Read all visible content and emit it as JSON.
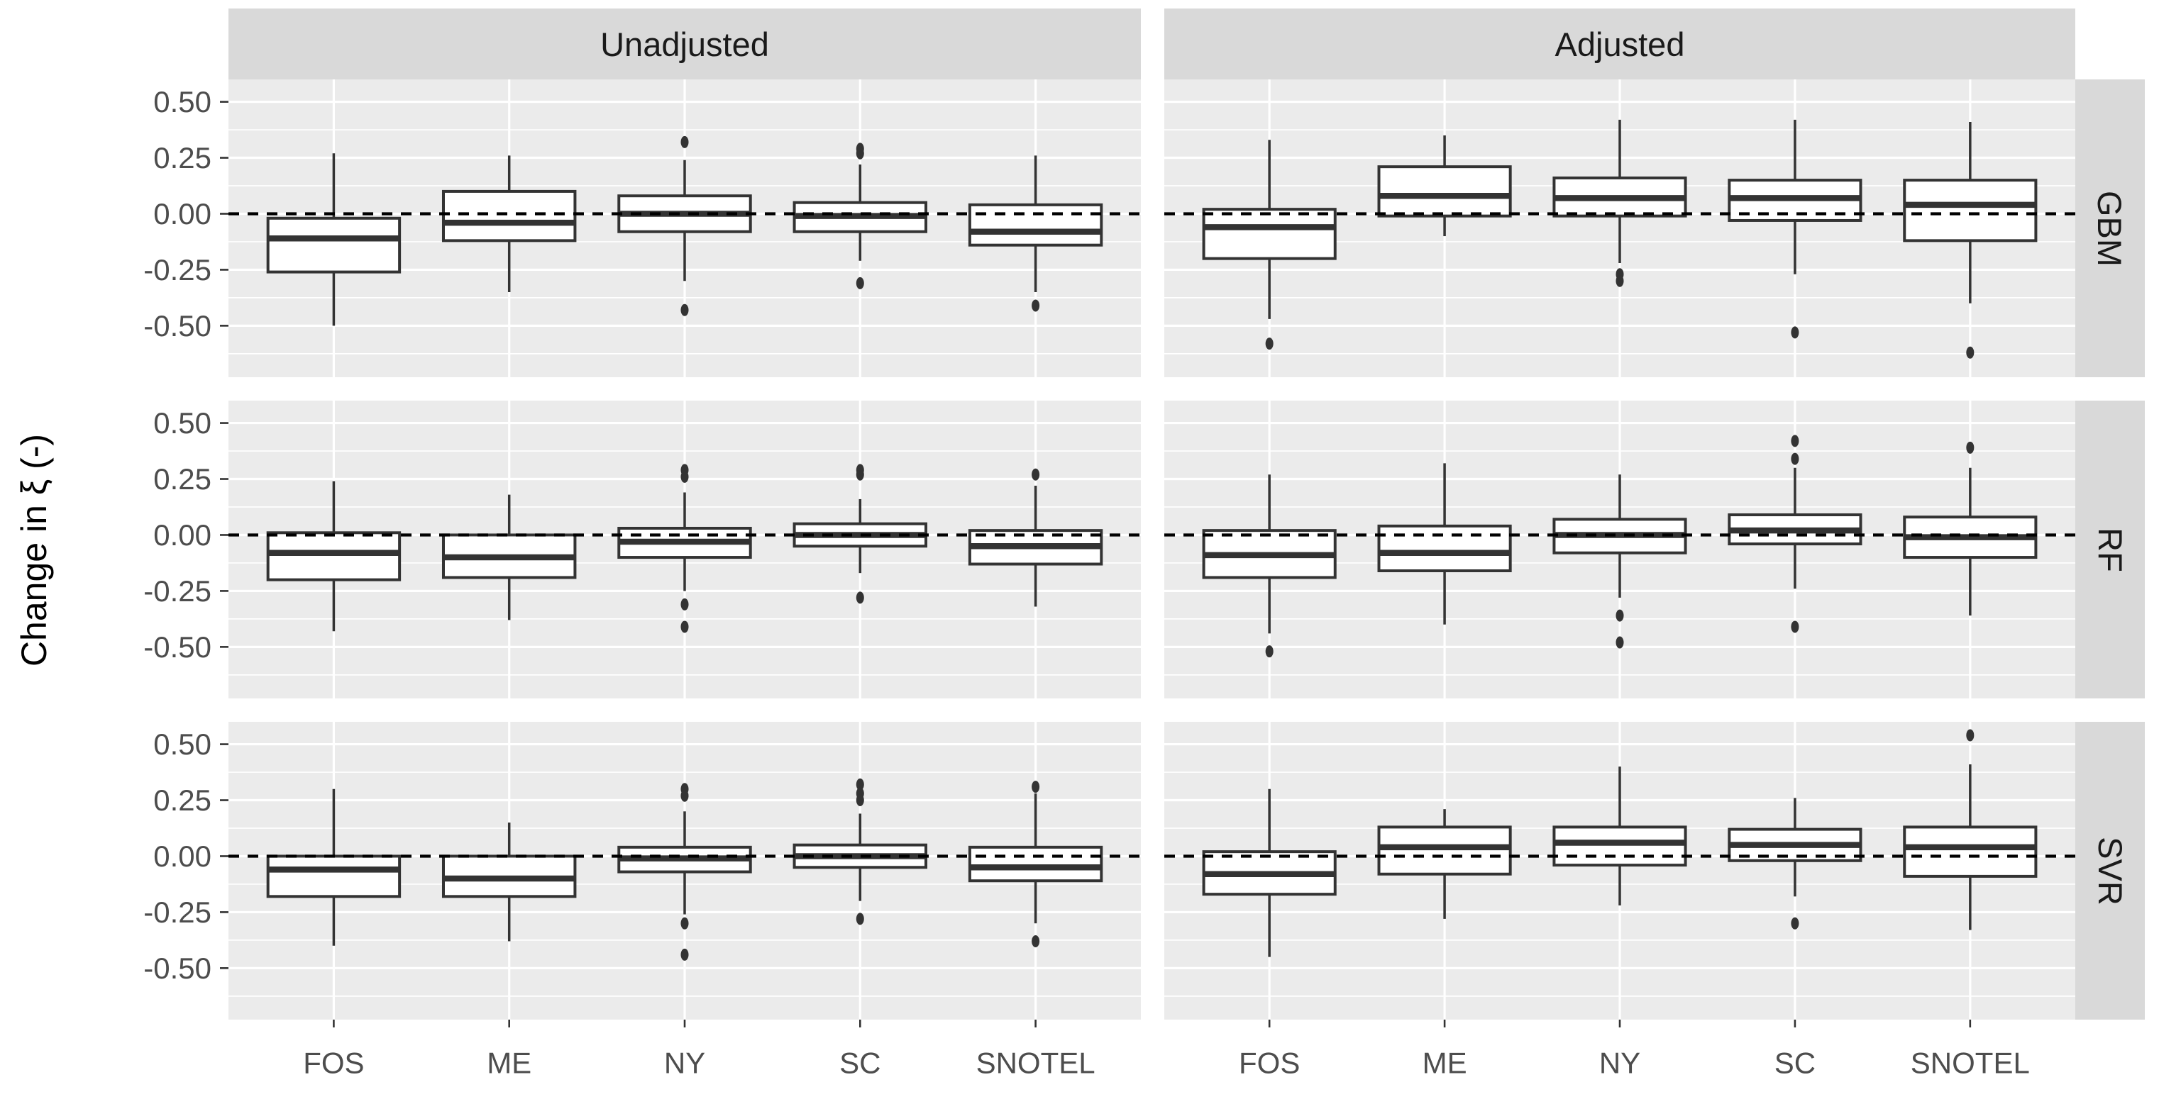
{
  "chart_data": {
    "type": "boxplot",
    "title": "",
    "ylabel": "Change in ξ (-)",
    "xlabel": "",
    "col_facets": [
      "Unadjusted",
      "Adjusted"
    ],
    "row_facets": [
      "GBM",
      "RF",
      "SVR"
    ],
    "x_categories": [
      "FOS",
      "ME",
      "NY",
      "SC",
      "SNOTEL"
    ],
    "y_ticks": [
      0.5,
      0.25,
      0.0,
      -0.25,
      -0.5
    ],
    "y_tick_labels": [
      "0.50",
      "0.25",
      "0.00",
      "-0.25",
      "-0.50"
    ],
    "ylim": [
      -0.73,
      0.6
    ],
    "reference_line_y": 0,
    "grid": true,
    "colors": {
      "panel_bg": "#EBEBEB",
      "strip_bg": "#D9D9D9",
      "gridline": "#FFFFFF",
      "box_stroke": "#333333",
      "box_fill": "#FFFFFF",
      "reference_line": "#000000",
      "axis_text": "#4D4D4D",
      "strip_text": "#1A1A1A"
    },
    "panels": [
      {
        "col": "Unadjusted",
        "row": "GBM",
        "boxes": [
          {
            "category": "FOS",
            "whisker_low": -0.5,
            "q1": -0.26,
            "median": -0.11,
            "q3": -0.02,
            "whisker_high": 0.27,
            "outliers": []
          },
          {
            "category": "ME",
            "whisker_low": -0.35,
            "q1": -0.12,
            "median": -0.04,
            "q3": 0.1,
            "whisker_high": 0.26,
            "outliers": []
          },
          {
            "category": "NY",
            "whisker_low": -0.3,
            "q1": -0.08,
            "median": 0.0,
            "q3": 0.08,
            "whisker_high": 0.24,
            "outliers": [
              0.32,
              -0.43
            ]
          },
          {
            "category": "SC",
            "whisker_low": -0.21,
            "q1": -0.08,
            "median": -0.01,
            "q3": 0.05,
            "whisker_high": 0.22,
            "outliers": [
              0.29,
              0.27,
              -0.31
            ]
          },
          {
            "category": "SNOTEL",
            "whisker_low": -0.35,
            "q1": -0.14,
            "median": -0.08,
            "q3": 0.04,
            "whisker_high": 0.26,
            "outliers": [
              -0.41
            ]
          }
        ]
      },
      {
        "col": "Adjusted",
        "row": "GBM",
        "boxes": [
          {
            "category": "FOS",
            "whisker_low": -0.47,
            "q1": -0.2,
            "median": -0.06,
            "q3": 0.02,
            "whisker_high": 0.33,
            "outliers": [
              -0.58
            ]
          },
          {
            "category": "ME",
            "whisker_low": -0.1,
            "q1": -0.01,
            "median": 0.08,
            "q3": 0.21,
            "whisker_high": 0.35,
            "outliers": []
          },
          {
            "category": "NY",
            "whisker_low": -0.22,
            "q1": -0.01,
            "median": 0.07,
            "q3": 0.16,
            "whisker_high": 0.42,
            "outliers": [
              -0.27,
              -0.3
            ]
          },
          {
            "category": "SC",
            "whisker_low": -0.27,
            "q1": -0.03,
            "median": 0.07,
            "q3": 0.15,
            "whisker_high": 0.42,
            "outliers": [
              -0.53
            ]
          },
          {
            "category": "SNOTEL",
            "whisker_low": -0.4,
            "q1": -0.12,
            "median": 0.04,
            "q3": 0.15,
            "whisker_high": 0.41,
            "outliers": [
              -0.62
            ]
          }
        ]
      },
      {
        "col": "Unadjusted",
        "row": "RF",
        "boxes": [
          {
            "category": "FOS",
            "whisker_low": -0.43,
            "q1": -0.2,
            "median": -0.08,
            "q3": 0.01,
            "whisker_high": 0.24,
            "outliers": []
          },
          {
            "category": "ME",
            "whisker_low": -0.38,
            "q1": -0.19,
            "median": -0.1,
            "q3": 0.0,
            "whisker_high": 0.18,
            "outliers": []
          },
          {
            "category": "NY",
            "whisker_low": -0.25,
            "q1": -0.1,
            "median": -0.03,
            "q3": 0.03,
            "whisker_high": 0.19,
            "outliers": [
              0.29,
              0.26,
              -0.31,
              -0.41
            ]
          },
          {
            "category": "SC",
            "whisker_low": -0.17,
            "q1": -0.05,
            "median": 0.0,
            "q3": 0.05,
            "whisker_high": 0.16,
            "outliers": [
              0.29,
              0.27,
              -0.28
            ]
          },
          {
            "category": "SNOTEL",
            "whisker_low": -0.32,
            "q1": -0.13,
            "median": -0.05,
            "q3": 0.02,
            "whisker_high": 0.22,
            "outliers": [
              0.27
            ]
          }
        ]
      },
      {
        "col": "Adjusted",
        "row": "RF",
        "boxes": [
          {
            "category": "FOS",
            "whisker_low": -0.44,
            "q1": -0.19,
            "median": -0.09,
            "q3": 0.02,
            "whisker_high": 0.27,
            "outliers": [
              -0.52
            ]
          },
          {
            "category": "ME",
            "whisker_low": -0.4,
            "q1": -0.16,
            "median": -0.08,
            "q3": 0.04,
            "whisker_high": 0.32,
            "outliers": []
          },
          {
            "category": "NY",
            "whisker_low": -0.28,
            "q1": -0.08,
            "median": 0.0,
            "q3": 0.07,
            "whisker_high": 0.27,
            "outliers": [
              -0.36,
              -0.48
            ]
          },
          {
            "category": "SC",
            "whisker_low": -0.24,
            "q1": -0.04,
            "median": 0.02,
            "q3": 0.09,
            "whisker_high": 0.3,
            "outliers": [
              0.42,
              0.34,
              -0.41
            ]
          },
          {
            "category": "SNOTEL",
            "whisker_low": -0.36,
            "q1": -0.1,
            "median": -0.01,
            "q3": 0.08,
            "whisker_high": 0.3,
            "outliers": [
              0.39
            ]
          }
        ]
      },
      {
        "col": "Unadjusted",
        "row": "SVR",
        "boxes": [
          {
            "category": "FOS",
            "whisker_low": -0.4,
            "q1": -0.18,
            "median": -0.06,
            "q3": 0.0,
            "whisker_high": 0.3,
            "outliers": []
          },
          {
            "category": "ME",
            "whisker_low": -0.38,
            "q1": -0.18,
            "median": -0.1,
            "q3": 0.0,
            "whisker_high": 0.15,
            "outliers": []
          },
          {
            "category": "NY",
            "whisker_low": -0.26,
            "q1": -0.07,
            "median": -0.01,
            "q3": 0.04,
            "whisker_high": 0.2,
            "outliers": [
              0.3,
              0.27,
              -0.3,
              -0.44
            ]
          },
          {
            "category": "SC",
            "whisker_low": -0.2,
            "q1": -0.05,
            "median": 0.0,
            "q3": 0.05,
            "whisker_high": 0.19,
            "outliers": [
              0.32,
              0.28,
              0.25,
              -0.28
            ]
          },
          {
            "category": "SNOTEL",
            "whisker_low": -0.3,
            "q1": -0.11,
            "median": -0.05,
            "q3": 0.04,
            "whisker_high": 0.28,
            "outliers": [
              0.31,
              -0.38
            ]
          }
        ]
      },
      {
        "col": "Adjusted",
        "row": "SVR",
        "boxes": [
          {
            "category": "FOS",
            "whisker_low": -0.45,
            "q1": -0.17,
            "median": -0.08,
            "q3": 0.02,
            "whisker_high": 0.3,
            "outliers": []
          },
          {
            "category": "ME",
            "whisker_low": -0.28,
            "q1": -0.08,
            "median": 0.04,
            "q3": 0.13,
            "whisker_high": 0.21,
            "outliers": []
          },
          {
            "category": "NY",
            "whisker_low": -0.22,
            "q1": -0.04,
            "median": 0.06,
            "q3": 0.13,
            "whisker_high": 0.4,
            "outliers": []
          },
          {
            "category": "SC",
            "whisker_low": -0.18,
            "q1": -0.02,
            "median": 0.05,
            "q3": 0.12,
            "whisker_high": 0.26,
            "outliers": [
              -0.3
            ]
          },
          {
            "category": "SNOTEL",
            "whisker_low": -0.33,
            "q1": -0.09,
            "median": 0.04,
            "q3": 0.13,
            "whisker_high": 0.41,
            "outliers": [
              0.54
            ]
          }
        ]
      }
    ]
  }
}
